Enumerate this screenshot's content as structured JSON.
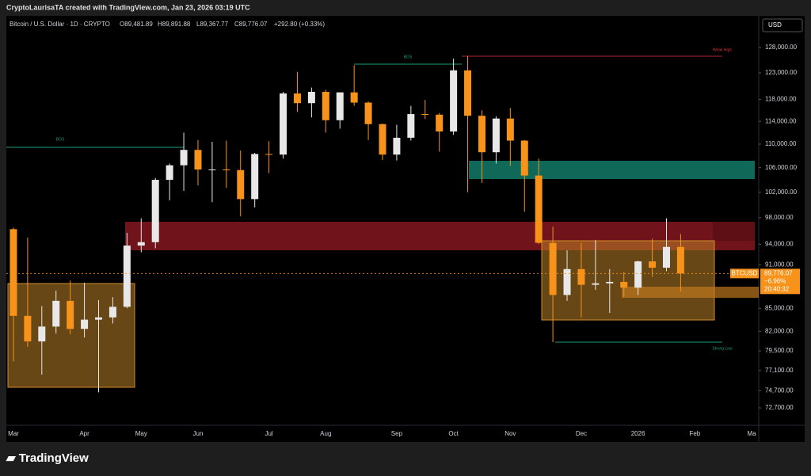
{
  "header": "CryptoLaurisaTA created with TradingView.com, Jan 23, 2026 03:19 UTC",
  "footer": "TradingView",
  "chart_data": {
    "type": "candlestick",
    "legend": {
      "symbol": "Bitcoin / U.S. Dollar · 1D · CRYPTO",
      "open": "O89,481.89",
      "high": "H89,891.88",
      "low": "L89,367.77",
      "close": "C89,776.07",
      "change": "+292.80 (+0.33%)"
    },
    "currency": "USD",
    "price_label": {
      "symbol": "BTCUSD",
      "price": "89,776.07",
      "change": "−6.96%",
      "countdown": "20:40:32"
    },
    "annotations": [
      "BOS",
      "BOS",
      "Weak High",
      "Strong Low"
    ],
    "categories": [
      "Mar",
      null,
      null,
      null,
      null,
      "Apr",
      null,
      null,
      null,
      "May",
      null,
      null,
      null,
      "Jun",
      null,
      null,
      null,
      null,
      "Jul",
      null,
      null,
      null,
      "Aug",
      null,
      null,
      null,
      null,
      "Sep",
      null,
      null,
      null,
      "Oct",
      null,
      null,
      null,
      "Nov",
      null,
      null,
      null,
      null,
      "Dec",
      null,
      null,
      null,
      "2026",
      null,
      null,
      null,
      "Feb",
      null,
      null,
      null,
      "Ma"
    ],
    "open": [
      96250,
      84000,
      80700,
      82600,
      86000,
      82300,
      83500,
      83800,
      85200,
      93800,
      94300,
      104000,
      106400,
      109000,
      105700,
      105700,
      105600,
      100900,
      108300,
      108200,
      119100,
      117300,
      119400,
      114200,
      119300,
      117400,
      113500,
      108200,
      111100,
      115300,
      115200,
      112200,
      123500,
      115000,
      108600,
      114500,
      110600,
      104700,
      94200,
      86800,
      90400,
      88200,
      88400,
      88600,
      87800,
      91500,
      90600,
      93600,
      null,
      null,
      null,
      null,
      null
    ],
    "high": [
      96500,
      95000,
      85300,
      87400,
      88800,
      88500,
      86100,
      86500,
      95700,
      97900,
      104300,
      106700,
      112000,
      110700,
      110400,
      110600,
      108900,
      108500,
      110500,
      119400,
      123200,
      120200,
      119800,
      119300,
      124500,
      117600,
      113600,
      113400,
      116800,
      117900,
      115500,
      125800,
      126300,
      116000,
      114900,
      116400,
      110700,
      107500,
      96600,
      93100,
      94200,
      94600,
      90400,
      90000,
      91600,
      94800,
      97900,
      95500,
      null,
      null,
      null,
      null,
      null
    ],
    "low": [
      78200,
      80000,
      76600,
      81700,
      81600,
      81200,
      74500,
      83000,
      85000,
      92800,
      93400,
      100700,
      102200,
      103100,
      100400,
      102700,
      98200,
      99600,
      105100,
      107500,
      115700,
      114700,
      112000,
      112700,
      116800,
      110700,
      107300,
      107200,
      110600,
      114400,
      108700,
      111600,
      102000,
      103500,
      106700,
      106300,
      98900,
      94000,
      80600,
      86000,
      83800,
      87500,
      84400,
      86500,
      86800,
      89300,
      90100,
      87300,
      null,
      null,
      null,
      null,
      null
    ],
    "close": [
      84000,
      80700,
      82600,
      86000,
      82300,
      83500,
      83800,
      85200,
      93800,
      94300,
      104000,
      106400,
      109000,
      105700,
      105700,
      105600,
      100900,
      108300,
      108200,
      119100,
      117300,
      119400,
      114200,
      119300,
      117400,
      113500,
      108200,
      111100,
      115300,
      115200,
      112200,
      123500,
      115000,
      108600,
      114500,
      110600,
      104700,
      94200,
      86800,
      90400,
      88200,
      88400,
      88600,
      87800,
      91500,
      90600,
      93600,
      89776.07,
      null,
      null,
      null,
      null,
      null
    ],
    "up_color": "#e8e8e8",
    "down_color": "#f7931a",
    "log_scale": true,
    "ylim": [
      70740,
      134530
    ],
    "yticks": [
      {
        "value": 128000,
        "label": "128,000.00"
      },
      {
        "value": 123000,
        "label": "123,000.00"
      },
      {
        "value": 118000,
        "label": "118,000.00"
      },
      {
        "value": 114000,
        "label": "114,000.00"
      },
      {
        "value": 110000,
        "label": "110,000.00"
      },
      {
        "value": 106000,
        "label": "106,000.00"
      },
      {
        "value": 102000,
        "label": "102,000.00"
      },
      {
        "value": 98000,
        "label": "98,000.00"
      },
      {
        "value": 94000,
        "label": "94,000.00"
      },
      {
        "value": 91000,
        "label": "91,000.00"
      },
      {
        "value": 85000,
        "label": "85,000.00"
      },
      {
        "value": 82000,
        "label": "82,000.00"
      },
      {
        "value": 79500,
        "label": "79,500.00"
      },
      {
        "value": 77100,
        "label": "77,100.00"
      },
      {
        "value": 74700,
        "label": "74,700.00"
      },
      {
        "value": 72700,
        "label": "72,700.00"
      }
    ]
  }
}
